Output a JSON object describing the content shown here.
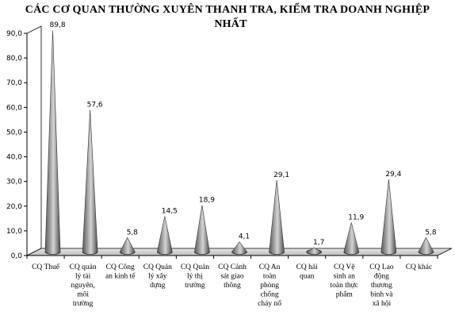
{
  "title_line1": "CÁC CƠ QUAN THƯỜNG XUYÊN THANH TRA, KIỂM TRA DOANH NGHIỆP",
  "title_line2": "NHẤT",
  "chart_data": {
    "type": "bar",
    "title": "CÁC CƠ QUAN THƯỜNG XUYÊN THANH TRA, KIỂM TRA DOANH NGHIỆP NHẤT",
    "xlabel": "",
    "ylabel": "",
    "ylim": [
      0,
      90
    ],
    "yticks": [
      "0,0",
      "10,0",
      "20,0",
      "30,0",
      "40,0",
      "50,0",
      "60,0",
      "70,0",
      "80,0",
      "90,0"
    ],
    "grid": false,
    "legend": "none",
    "mark_shape": "cone",
    "bar_color": "#8c8c8c",
    "categories": [
      [
        "CQ Thuế"
      ],
      [
        "CQ quản",
        "lý tài",
        "nguyên,",
        "môi",
        "trường"
      ],
      [
        "CQ Công",
        "an kinh tế"
      ],
      [
        "CQ Quản",
        "lý xây",
        "dựng"
      ],
      [
        "CQ Quản",
        "lý thị",
        "trường"
      ],
      [
        "CQ Cảnh",
        "sát giao",
        "thông"
      ],
      [
        "CQ An",
        "toàn",
        "phòng",
        "chống",
        "cháy nổ"
      ],
      [
        "CQ hải",
        "quan"
      ],
      [
        "CQ Vệ",
        "sinh an",
        "toàn thực",
        "phẩm"
      ],
      [
        "CQ Lao",
        "động",
        "thương",
        "binh và",
        "xã hội"
      ],
      [
        "CQ khác"
      ]
    ],
    "values": [
      89.8,
      57.6,
      5.8,
      14.5,
      18.9,
      4.1,
      29.1,
      1.7,
      11.9,
      29.4,
      5.8
    ],
    "value_labels": [
      "89,8",
      "57,6",
      "5,8",
      "14,5",
      "18,9",
      "4,1",
      "29,1",
      "1,7",
      "11,9",
      "29,4",
      "5,8"
    ]
  }
}
